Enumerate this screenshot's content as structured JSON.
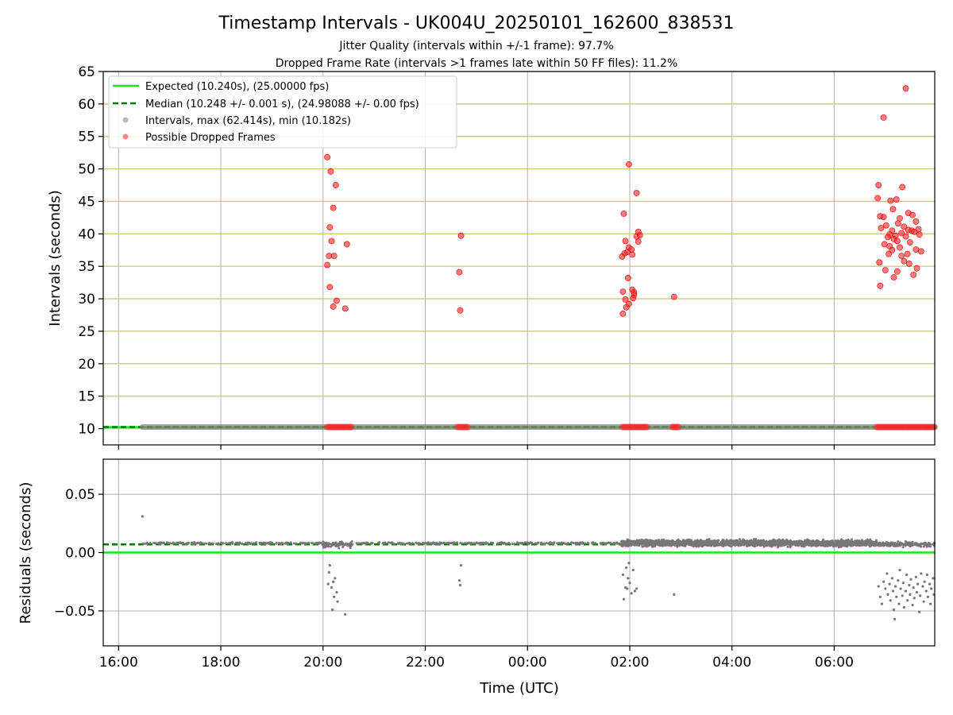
{
  "chart_data": [
    {
      "type": "scatter",
      "title": "Timestamp Intervals - UK004U_20250101_162600_838531",
      "subtitles": [
        "Jitter Quality (intervals within +/-1 frame): 97.7%",
        "Dropped Frame Rate (intervals >1 frames late within 50 FF files): 11.2%"
      ],
      "xlabel": "",
      "ylabel": "Intervals (seconds)",
      "xlim": [
        "15:42",
        "07:58"
      ],
      "ylim": [
        7.5,
        65
      ],
      "yticks": [
        10,
        15,
        20,
        25,
        30,
        35,
        40,
        45,
        50,
        55,
        60,
        65
      ],
      "grid": true,
      "legend_position": "upper-left",
      "legend": [
        {
          "label": "Expected (10.240s), (25.00000 fps)",
          "kind": "solid-line",
          "color": "#22dd22"
        },
        {
          "label": "Median (10.248 +/- 0.001 s), (24.98088 +/- 0.00 fps)",
          "kind": "dashed-line",
          "color": "#007700"
        },
        {
          "label": "Intervals, max (62.414s), min (10.182s)",
          "kind": "marker",
          "color": "#808080"
        },
        {
          "label": "Possible Dropped Frames",
          "kind": "marker",
          "color": "#ff2222"
        }
      ],
      "expected_interval": 10.24,
      "median_interval": 10.248,
      "baseline_interval_range": [
        "16:28",
        "07:58"
      ],
      "dropped_frame_clusters": [
        [
          "20:05",
          "20:35"
        ],
        [
          "22:38",
          "22:50"
        ],
        [
          "01:52",
          "02:22"
        ],
        [
          "02:50",
          "02:58"
        ],
        [
          "06:50",
          "07:58"
        ]
      ],
      "dropped_frames": [
        {
          "t": "20:05",
          "v": 51.8
        },
        {
          "t": "20:09",
          "v": 49.6
        },
        {
          "t": "20:15",
          "v": 47.5
        },
        {
          "t": "20:12",
          "v": 44.0
        },
        {
          "t": "20:08",
          "v": 41.0
        },
        {
          "t": "20:10",
          "v": 38.9
        },
        {
          "t": "20:28",
          "v": 38.4
        },
        {
          "t": "20:07",
          "v": 36.6
        },
        {
          "t": "20:13",
          "v": 36.6
        },
        {
          "t": "20:05",
          "v": 35.2
        },
        {
          "t": "20:08",
          "v": 31.8
        },
        {
          "t": "20:16",
          "v": 29.7
        },
        {
          "t": "20:12",
          "v": 28.8
        },
        {
          "t": "20:26",
          "v": 28.5
        },
        {
          "t": "22:42",
          "v": 39.7
        },
        {
          "t": "22:40",
          "v": 34.1
        },
        {
          "t": "22:41",
          "v": 28.2
        },
        {
          "t": "01:59",
          "v": 50.7
        },
        {
          "t": "02:08",
          "v": 46.3
        },
        {
          "t": "01:53",
          "v": 43.1
        },
        {
          "t": "02:10",
          "v": 40.3
        },
        {
          "t": "02:08",
          "v": 39.6
        },
        {
          "t": "02:12",
          "v": 39.8
        },
        {
          "t": "01:55",
          "v": 38.9
        },
        {
          "t": "02:10",
          "v": 38.8
        },
        {
          "t": "01:59",
          "v": 37.9
        },
        {
          "t": "01:57",
          "v": 37.2
        },
        {
          "t": "01:54",
          "v": 37.0
        },
        {
          "t": "02:02",
          "v": 37.6
        },
        {
          "t": "01:51",
          "v": 36.5
        },
        {
          "t": "02:03",
          "v": 36.8
        },
        {
          "t": "01:58",
          "v": 33.2
        },
        {
          "t": "01:52",
          "v": 31.1
        },
        {
          "t": "02:03",
          "v": 31.4
        },
        {
          "t": "02:05",
          "v": 31.0
        },
        {
          "t": "02:05",
          "v": 30.6
        },
        {
          "t": "02:04",
          "v": 30.1
        },
        {
          "t": "01:55",
          "v": 29.9
        },
        {
          "t": "01:59",
          "v": 29.2
        },
        {
          "t": "01:56",
          "v": 28.7
        },
        {
          "t": "01:52",
          "v": 27.7
        },
        {
          "t": "02:52",
          "v": 30.3
        },
        {
          "t": "07:24",
          "v": 62.4
        },
        {
          "t": "06:58",
          "v": 57.9
        },
        {
          "t": "06:52",
          "v": 47.5
        },
        {
          "t": "07:20",
          "v": 47.2
        },
        {
          "t": "06:51",
          "v": 45.5
        },
        {
          "t": "07:06",
          "v": 45.1
        },
        {
          "t": "07:13",
          "v": 45.3
        },
        {
          "t": "07:09",
          "v": 43.8
        },
        {
          "t": "07:27",
          "v": 43.2
        },
        {
          "t": "07:32",
          "v": 42.9
        },
        {
          "t": "06:54",
          "v": 42.7
        },
        {
          "t": "06:58",
          "v": 42.6
        },
        {
          "t": "07:17",
          "v": 42.4
        },
        {
          "t": "07:36",
          "v": 41.9
        },
        {
          "t": "07:01",
          "v": 41.3
        },
        {
          "t": "07:15",
          "v": 41.6
        },
        {
          "t": "07:22",
          "v": 41.1
        },
        {
          "t": "06:55",
          "v": 40.9
        },
        {
          "t": "07:08",
          "v": 40.5
        },
        {
          "t": "07:27",
          "v": 40.6
        },
        {
          "t": "07:31",
          "v": 40.5
        },
        {
          "t": "07:34",
          "v": 40.3
        },
        {
          "t": "07:39",
          "v": 40.7
        },
        {
          "t": "07:05",
          "v": 39.9
        },
        {
          "t": "07:12",
          "v": 39.7
        },
        {
          "t": "07:19",
          "v": 40.1
        },
        {
          "t": "07:24",
          "v": 39.6
        },
        {
          "t": "07:03",
          "v": 39.5
        },
        {
          "t": "07:10",
          "v": 39.2
        },
        {
          "t": "07:14",
          "v": 38.9
        },
        {
          "t": "07:29",
          "v": 38.7
        },
        {
          "t": "07:40",
          "v": 39.9
        },
        {
          "t": "06:59",
          "v": 38.4
        },
        {
          "t": "07:05",
          "v": 38.1
        },
        {
          "t": "07:17",
          "v": 37.9
        },
        {
          "t": "07:08",
          "v": 37.5
        },
        {
          "t": "07:36",
          "v": 37.6
        },
        {
          "t": "07:42",
          "v": 37.3
        },
        {
          "t": "07:04",
          "v": 36.9
        },
        {
          "t": "07:19",
          "v": 36.6
        },
        {
          "t": "07:26",
          "v": 36.9
        },
        {
          "t": "06:53",
          "v": 35.6
        },
        {
          "t": "07:22",
          "v": 35.8
        },
        {
          "t": "07:28",
          "v": 35.4
        },
        {
          "t": "07:00",
          "v": 34.4
        },
        {
          "t": "07:14",
          "v": 34.2
        },
        {
          "t": "07:37",
          "v": 34.7
        },
        {
          "t": "07:33",
          "v": 33.7
        },
        {
          "t": "07:10",
          "v": 33.3
        },
        {
          "t": "06:54",
          "v": 32.0
        }
      ]
    },
    {
      "type": "scatter",
      "title": "",
      "xlabel": "Time (UTC)",
      "ylabel": "Residuals (seconds)",
      "xlim": [
        "15:42",
        "07:58"
      ],
      "ylim": [
        -0.08,
        0.08
      ],
      "yticks": [
        0.05,
        0.0,
        -0.05
      ],
      "ytick_labels": [
        "0.05",
        "0.00",
        "−0.05"
      ],
      "xticks": [
        "16:00",
        "18:00",
        "20:00",
        "22:00",
        "00:00",
        "02:00",
        "04:00",
        "06:00"
      ],
      "grid": true,
      "expected_residual": 0.0,
      "median_residual": 0.007,
      "outlier_high": {
        "t": "16:28",
        "v": 0.031
      },
      "residual_clusters": [
        {
          "range": [
            "16:28",
            "20:00"
          ],
          "center": 0.008,
          "spread": 0.001,
          "density": "sparse"
        },
        {
          "range": [
            "20:00",
            "20:35"
          ],
          "center": 0.007,
          "spread": 0.004,
          "density": "medium"
        },
        {
          "range": [
            "20:35",
            "22:38"
          ],
          "center": 0.008,
          "spread": 0.001,
          "density": "sparse"
        },
        {
          "range": [
            "22:38",
            "01:50"
          ],
          "center": 0.008,
          "spread": 0.001,
          "density": "sparse"
        },
        {
          "range": [
            "01:50",
            "06:50"
          ],
          "center": 0.008,
          "spread": 0.004,
          "density": "dense"
        },
        {
          "range": [
            "06:50",
            "07:58"
          ],
          "center": 0.007,
          "spread": 0.003,
          "density": "medium"
        }
      ],
      "negative_residuals": [
        {
          "t": "20:08",
          "v": -0.011
        },
        {
          "t": "20:07",
          "v": -0.017
        },
        {
          "t": "20:12",
          "v": -0.025
        },
        {
          "t": "20:14",
          "v": -0.022
        },
        {
          "t": "20:10",
          "v": -0.03
        },
        {
          "t": "20:16",
          "v": -0.034
        },
        {
          "t": "20:13",
          "v": -0.038
        },
        {
          "t": "20:17",
          "v": -0.042
        },
        {
          "t": "20:11",
          "v": -0.049
        },
        {
          "t": "20:26",
          "v": -0.053
        },
        {
          "t": "20:06",
          "v": -0.027
        },
        {
          "t": "22:42",
          "v": -0.011
        },
        {
          "t": "22:40",
          "v": -0.024
        },
        {
          "t": "22:41",
          "v": -0.028
        },
        {
          "t": "01:52",
          "v": -0.019
        },
        {
          "t": "01:56",
          "v": -0.013
        },
        {
          "t": "02:04",
          "v": -0.015
        },
        {
          "t": "01:58",
          "v": -0.022
        },
        {
          "t": "02:00",
          "v": -0.026
        },
        {
          "t": "01:55",
          "v": -0.03
        },
        {
          "t": "02:06",
          "v": -0.033
        },
        {
          "t": "02:02",
          "v": -0.035
        },
        {
          "t": "01:57",
          "v": -0.031
        },
        {
          "t": "01:53",
          "v": -0.04
        },
        {
          "t": "02:08",
          "v": -0.031
        },
        {
          "t": "01:59",
          "v": -0.009
        },
        {
          "t": "02:52",
          "v": -0.036
        },
        {
          "t": "06:52",
          "v": -0.029
        },
        {
          "t": "06:54",
          "v": -0.038
        },
        {
          "t": "06:56",
          "v": -0.044
        },
        {
          "t": "06:58",
          "v": -0.025
        },
        {
          "t": "07:00",
          "v": -0.031
        },
        {
          "t": "07:02",
          "v": -0.018
        },
        {
          "t": "07:03",
          "v": -0.036
        },
        {
          "t": "07:05",
          "v": -0.027
        },
        {
          "t": "07:06",
          "v": -0.041
        },
        {
          "t": "07:08",
          "v": -0.022
        },
        {
          "t": "07:09",
          "v": -0.033
        },
        {
          "t": "07:10",
          "v": -0.049
        },
        {
          "t": "07:11",
          "v": -0.057
        },
        {
          "t": "07:12",
          "v": -0.029
        },
        {
          "t": "07:13",
          "v": -0.038
        },
        {
          "t": "07:15",
          "v": -0.024
        },
        {
          "t": "07:16",
          "v": -0.044
        },
        {
          "t": "07:17",
          "v": -0.015
        },
        {
          "t": "07:18",
          "v": -0.031
        },
        {
          "t": "07:20",
          "v": -0.037
        },
        {
          "t": "07:21",
          "v": -0.026
        },
        {
          "t": "07:22",
          "v": -0.047
        },
        {
          "t": "07:24",
          "v": -0.033
        },
        {
          "t": "07:25",
          "v": -0.019
        },
        {
          "t": "07:26",
          "v": -0.041
        },
        {
          "t": "07:28",
          "v": -0.028
        },
        {
          "t": "07:29",
          "v": -0.036
        },
        {
          "t": "07:30",
          "v": -0.023
        },
        {
          "t": "07:32",
          "v": -0.045
        },
        {
          "t": "07:33",
          "v": -0.03
        },
        {
          "t": "07:34",
          "v": -0.039
        },
        {
          "t": "07:36",
          "v": -0.021
        },
        {
          "t": "07:37",
          "v": -0.034
        },
        {
          "t": "07:38",
          "v": -0.027
        },
        {
          "t": "07:40",
          "v": -0.051
        },
        {
          "t": "07:41",
          "v": -0.037
        },
        {
          "t": "07:42",
          "v": -0.018
        },
        {
          "t": "07:44",
          "v": -0.029
        },
        {
          "t": "07:45",
          "v": -0.042
        },
        {
          "t": "07:46",
          "v": -0.025
        },
        {
          "t": "07:48",
          "v": -0.033
        },
        {
          "t": "07:49",
          "v": -0.019
        },
        {
          "t": "07:50",
          "v": -0.038
        },
        {
          "t": "07:52",
          "v": -0.027
        },
        {
          "t": "07:53",
          "v": -0.044
        },
        {
          "t": "07:54",
          "v": -0.031
        },
        {
          "t": "07:56",
          "v": -0.022
        },
        {
          "t": "07:57",
          "v": -0.036
        }
      ]
    }
  ]
}
